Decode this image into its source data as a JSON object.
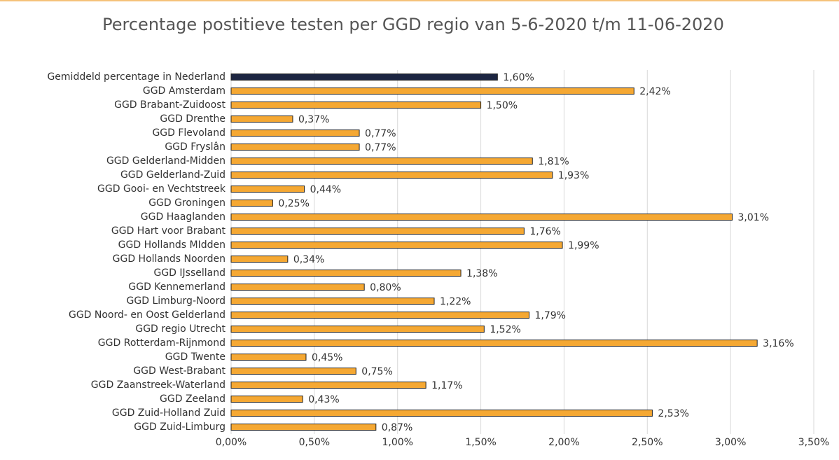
{
  "chart_data": {
    "type": "bar",
    "orientation": "horizontal",
    "title": "Percentage postitieve testen per GGD regio van 5-6-2020 t/m 11-06-2020",
    "categories": [
      "Gemiddeld percentage in Nederland",
      "GGD Amsterdam",
      "GGD Brabant-Zuidoost",
      "GGD Drenthe",
      "GGD Flevoland",
      "GGD Fryslân",
      "GGD Gelderland-Midden",
      "GGD Gelderland-Zuid",
      "GGD Gooi- en Vechtstreek",
      "GGD Groningen",
      "GGD Haaglanden",
      "GGD Hart voor Brabant",
      "GGD Hollands MIdden",
      "GGD Hollands Noorden",
      "GGD IJsselland",
      "GGD Kennemerland",
      "GGD Limburg-Noord",
      "GGD Noord- en Oost Gelderland",
      "GGD regio Utrecht",
      "GGD Rotterdam-Rijnmond",
      "GGD Twente",
      "GGD West-Brabant",
      "GGD Zaanstreek-Waterland",
      "GGD Zeeland",
      "GGD Zuid-Holland Zuid",
      "GGD Zuid-Limburg"
    ],
    "values": [
      1.6,
      2.42,
      1.5,
      0.37,
      0.77,
      0.77,
      1.81,
      1.93,
      0.44,
      0.25,
      3.01,
      1.76,
      1.99,
      0.34,
      1.38,
      0.8,
      1.22,
      1.79,
      1.52,
      3.16,
      0.45,
      0.75,
      1.17,
      0.43,
      2.53,
      0.87
    ],
    "value_labels": [
      "1,60%",
      "2,42%",
      "1,50%",
      "0,37%",
      "0,77%",
      "0,77%",
      "1,81%",
      "1,93%",
      "0,44%",
      "0,25%",
      "3,01%",
      "1,76%",
      "1,99%",
      "0,34%",
      "1,38%",
      "0,80%",
      "1,22%",
      "1,79%",
      "1,52%",
      "3,16%",
      "0,45%",
      "0,75%",
      "1,17%",
      "0,43%",
      "2,53%",
      "0,87%"
    ],
    "colors": [
      "#1c2541",
      "#f5a833",
      "#f5a833",
      "#f5a833",
      "#f5a833",
      "#f5a833",
      "#f5a833",
      "#f5a833",
      "#f5a833",
      "#f5a833",
      "#f5a833",
      "#f5a833",
      "#f5a833",
      "#f5a833",
      "#f5a833",
      "#f5a833",
      "#f5a833",
      "#f5a833",
      "#f5a833",
      "#f5a833",
      "#f5a833",
      "#f5a833",
      "#f5a833",
      "#f5a833",
      "#f5a833",
      "#f5a833"
    ],
    "xlim": [
      0,
      3.5
    ],
    "xticks": [
      {
        "value": 0,
        "label": "0,00%"
      },
      {
        "value": 0.5,
        "label": "0,50%"
      },
      {
        "value": 1,
        "label": "1,00%"
      },
      {
        "value": 1.5,
        "label": "1,50%"
      },
      {
        "value": 2,
        "label": "2,00%"
      },
      {
        "value": 2.5,
        "label": "2,50%"
      },
      {
        "value": 3,
        "label": "3,00%"
      },
      {
        "value": 3.5,
        "label": "3,50%"
      }
    ],
    "grid": true
  }
}
